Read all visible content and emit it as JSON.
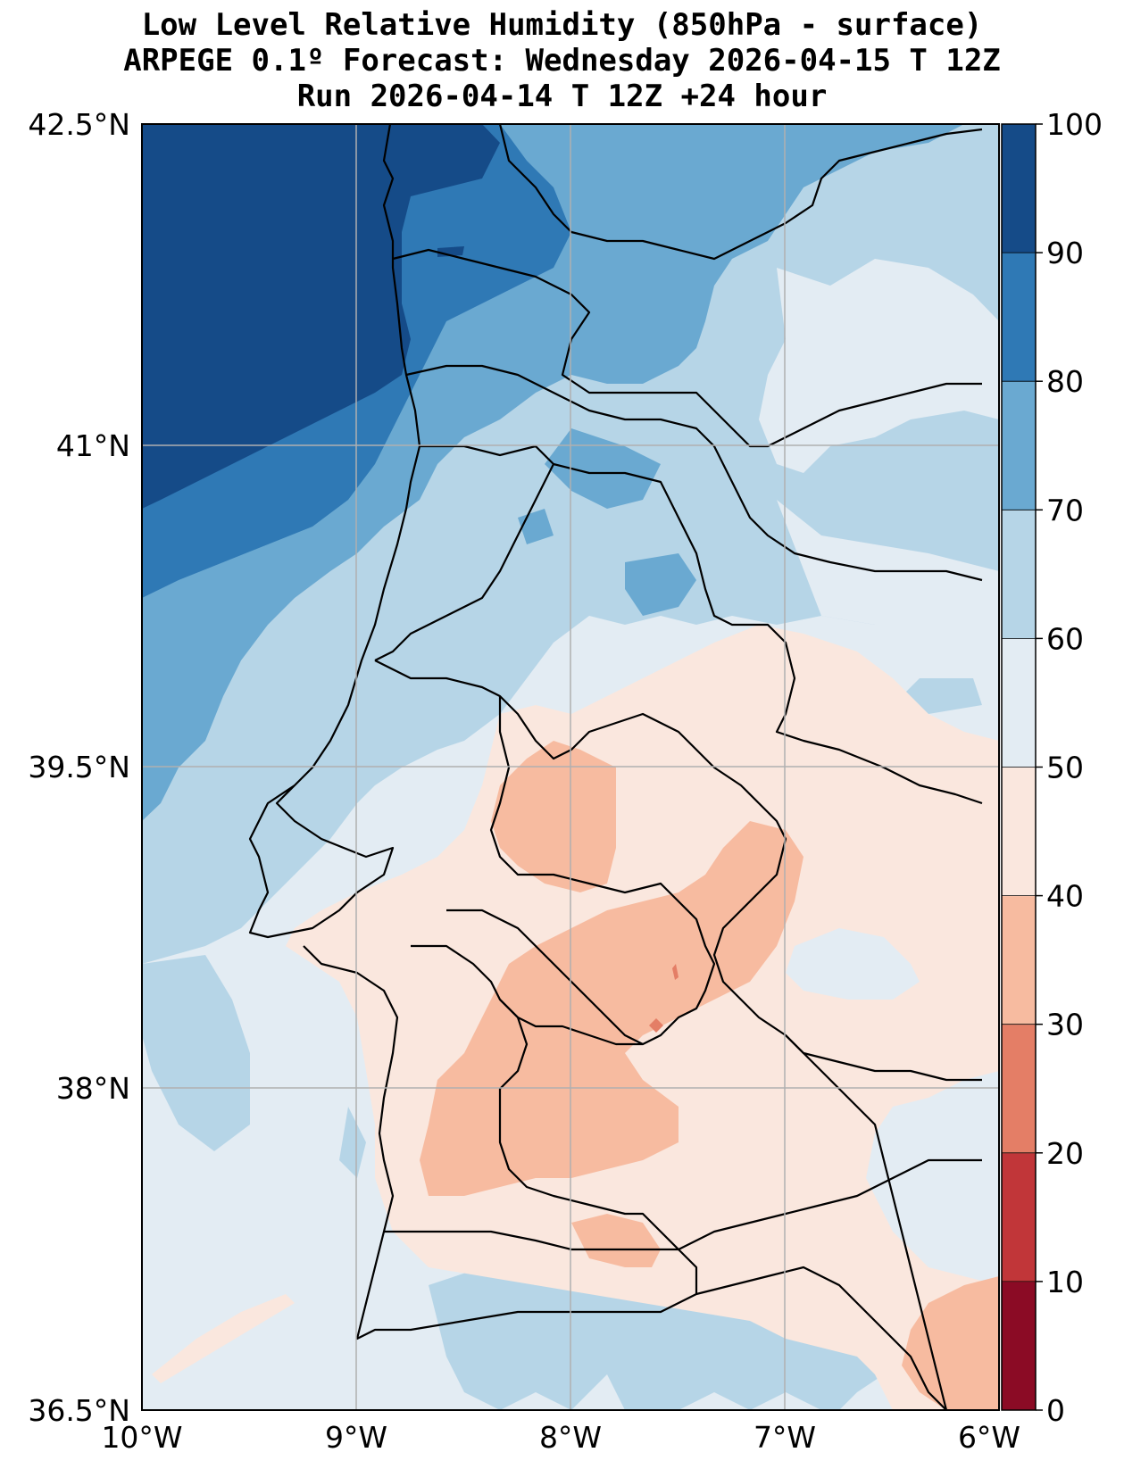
{
  "title": {
    "line1": "Low Level Relative Humidity (850hPa - surface)",
    "line2": "ARPEGE 0.1º Forecast: Wednesday 2026-04-15 T 12Z",
    "line3": "Run 2026-04-14 T 12Z +24 hour"
  },
  "map": {
    "lat_labels": [
      "42.5°N",
      "41°N",
      "39.5°N",
      "38°N",
      "36.5°N"
    ],
    "lon_labels": [
      "10°W",
      "9°W",
      "8°W",
      "7°W",
      "6°W"
    ],
    "extent": {
      "lon_min": -10,
      "lon_max": -6,
      "lat_min": 36.5,
      "lat_max": 42.5
    }
  },
  "colorbar": {
    "levels": [
      "0",
      "10",
      "20",
      "30",
      "40",
      "50",
      "60",
      "70",
      "80",
      "90",
      "100"
    ],
    "colors": [
      "#8b0b25",
      "#c13639",
      "#e47e66",
      "#f7bba0",
      "#fae7de",
      "#e3ecf3",
      "#b6d5e7",
      "#6aa9d1",
      "#2f79b5",
      "#154b88"
    ]
  },
  "colors": {
    "very_high": "#154b88",
    "high": "#2f79b5",
    "mid_high": "#6aa9d1",
    "mid": "#b6d5e7",
    "neutral": "#e3ecf3",
    "low": "#fae7de",
    "lower": "#f7bba0",
    "lowest": "#e47e66"
  }
}
